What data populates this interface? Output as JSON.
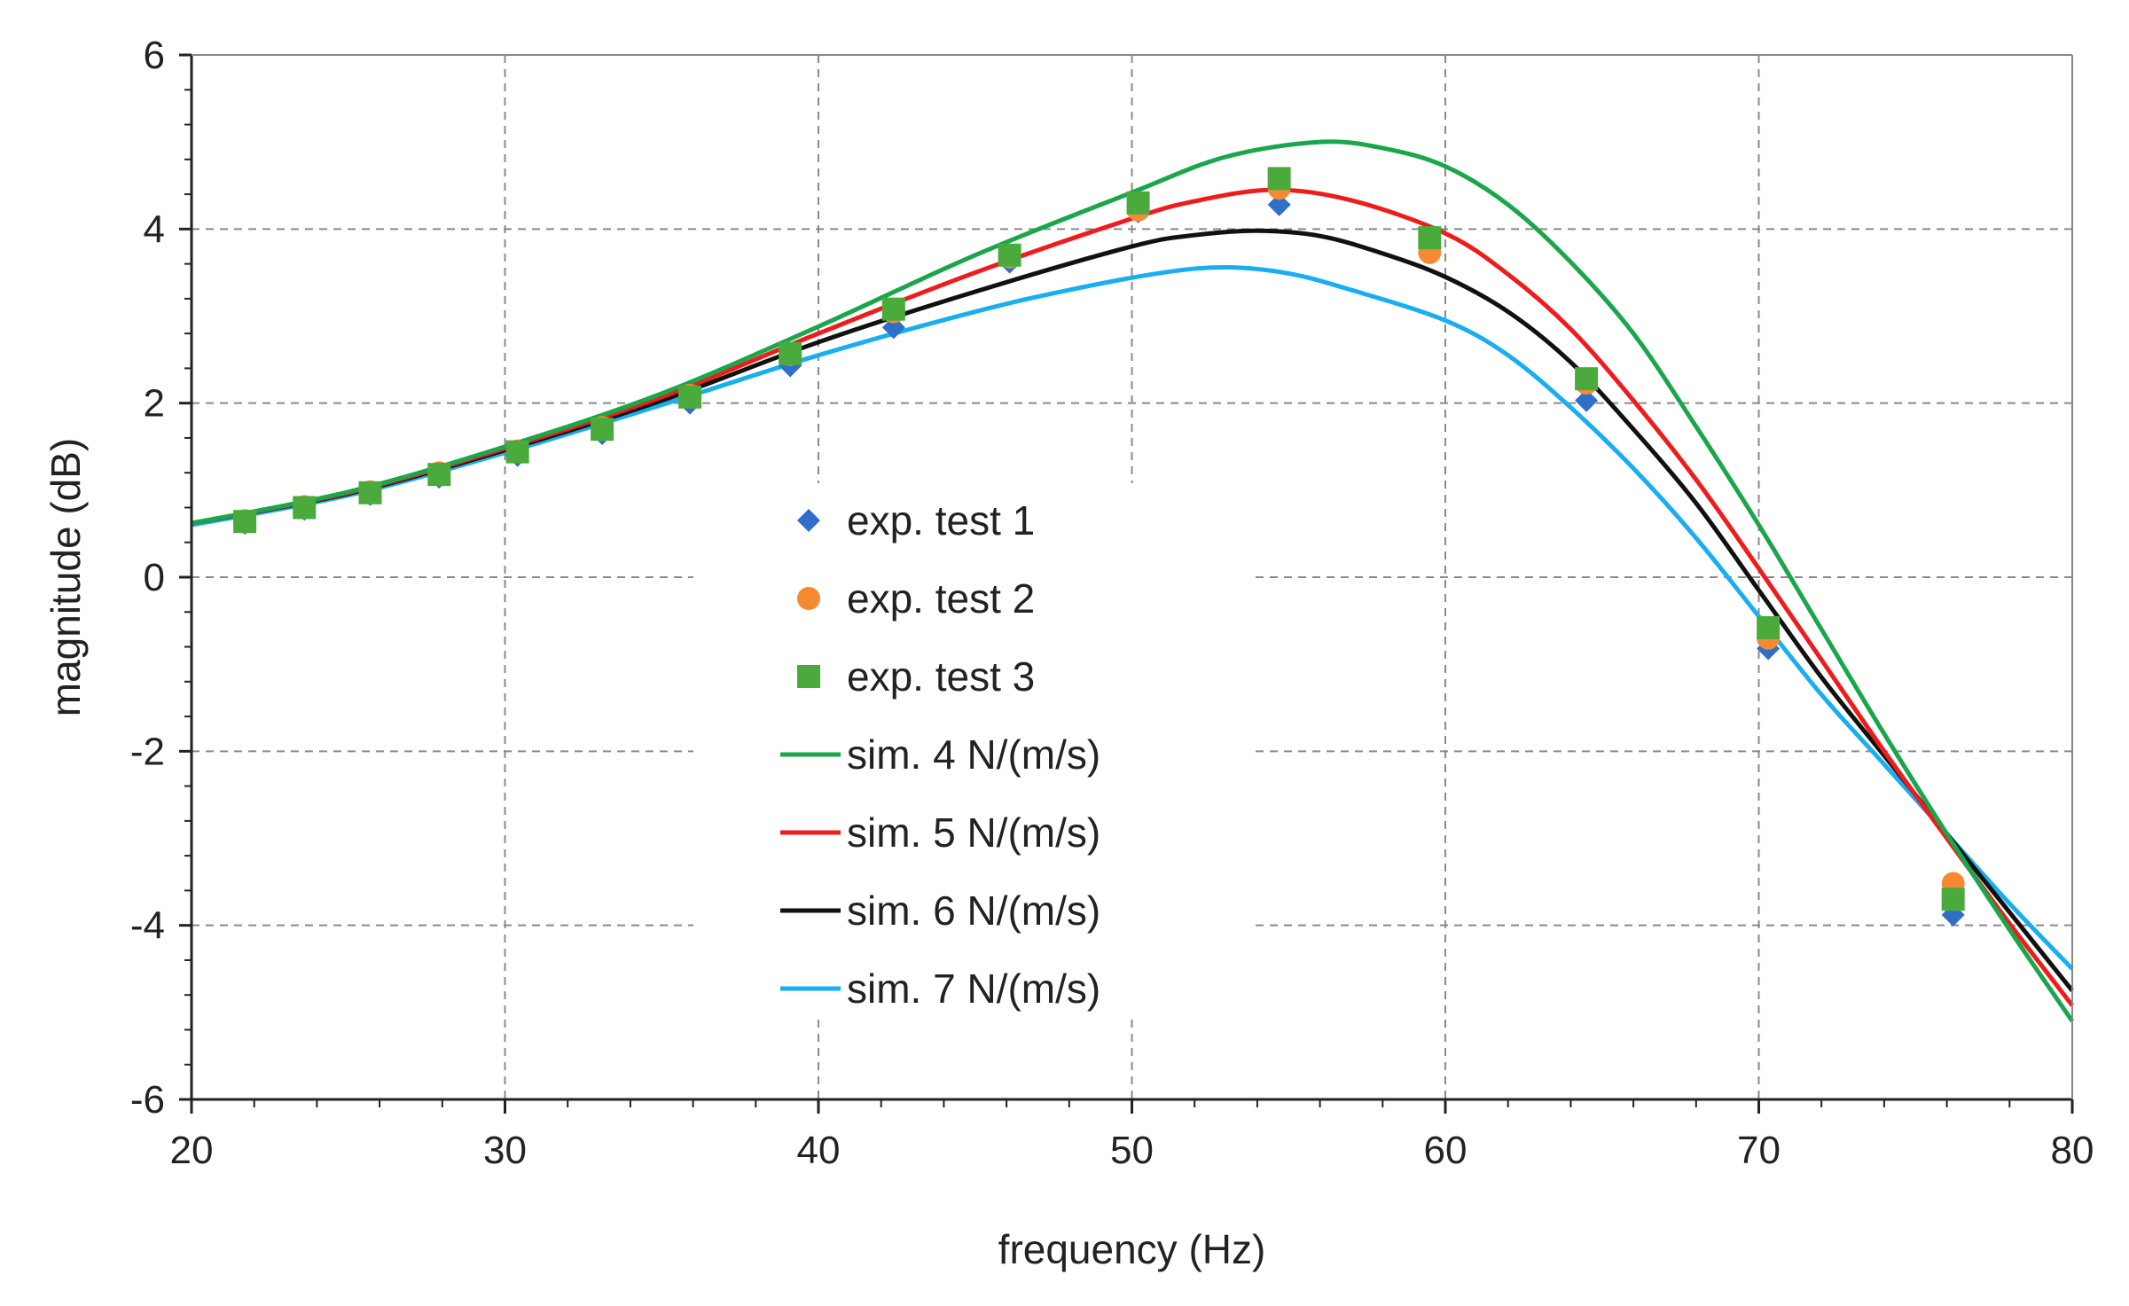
{
  "chart_data": {
    "type": "scatter",
    "title": "",
    "xlabel": "frequency (Hz)",
    "ylabel": "magnitude (dB)",
    "xlim": [
      20,
      80
    ],
    "ylim": [
      -6,
      6
    ],
    "x_ticks": [
      20,
      30,
      40,
      50,
      60,
      70,
      80
    ],
    "y_ticks": [
      -6,
      -4,
      -2,
      0,
      2,
      4,
      6
    ],
    "x_tick_labels": [
      "20",
      "30",
      "40",
      "50",
      "60",
      "70",
      "80"
    ],
    "y_tick_labels": [
      "-6",
      "-4",
      "-2",
      "0",
      "2",
      "4",
      "6"
    ],
    "grid": true,
    "legend_position": "center-left",
    "scatter_series": [
      {
        "name": "exp. test 1",
        "marker": "diamond",
        "color": "#2f6fc9",
        "x": [
          21.7,
          23.6,
          25.7,
          27.9,
          30.4,
          33.1,
          35.9,
          39.1,
          42.4,
          46.1,
          50.2,
          54.7,
          59.5,
          64.5,
          70.3,
          76.2
        ],
        "y": [
          0.62,
          0.78,
          0.95,
          1.15,
          1.4,
          1.65,
          2.0,
          2.43,
          2.87,
          3.62,
          4.2,
          4.28,
          3.8,
          2.03,
          -0.82,
          -3.88
        ]
      },
      {
        "name": "exp. test 2",
        "marker": "circle",
        "color": "#f58a33",
        "x": [
          21.7,
          23.6,
          25.7,
          27.9,
          30.4,
          33.1,
          35.9,
          39.1,
          42.4,
          46.1,
          50.2,
          54.7,
          59.5,
          64.5,
          70.3,
          76.2
        ],
        "y": [
          0.65,
          0.81,
          0.98,
          1.2,
          1.45,
          1.72,
          2.09,
          2.56,
          3.05,
          3.68,
          4.22,
          4.47,
          3.73,
          2.23,
          -0.7,
          -3.52
        ]
      },
      {
        "name": "exp. test 3",
        "marker": "square",
        "color": "#4aab3c",
        "x": [
          21.7,
          23.6,
          25.7,
          27.9,
          30.4,
          33.1,
          35.9,
          39.1,
          42.4,
          46.1,
          50.2,
          54.7,
          59.5,
          64.5,
          70.3,
          76.2
        ],
        "y": [
          0.64,
          0.8,
          0.97,
          1.18,
          1.44,
          1.7,
          2.07,
          2.57,
          3.08,
          3.7,
          4.3,
          4.58,
          3.9,
          2.28,
          -0.58,
          -3.7
        ]
      }
    ],
    "line_series": [
      {
        "name": "sim. 4 N/(m/s)",
        "color": "#1aa64a",
        "x": [
          20,
          25,
          30,
          35,
          40,
          45,
          50,
          53,
          56,
          58,
          60,
          62,
          64,
          66,
          68,
          70,
          72,
          74,
          76,
          78,
          80
        ],
        "y": [
          0.62,
          0.98,
          1.5,
          2.11,
          2.88,
          3.7,
          4.42,
          4.83,
          5.0,
          4.93,
          4.72,
          4.28,
          3.62,
          2.8,
          1.73,
          0.6,
          -0.6,
          -1.8,
          -2.95,
          -4.05,
          -5.1
        ]
      },
      {
        "name": "sim. 5 N/(m/s)",
        "color": "#ee1c1c",
        "x": [
          20,
          25,
          30,
          35,
          40,
          45,
          50,
          52,
          54.5,
          57,
          60,
          62,
          64,
          66,
          68,
          70,
          72,
          74,
          76,
          78,
          80
        ],
        "y": [
          0.62,
          0.97,
          1.48,
          2.07,
          2.8,
          3.5,
          4.12,
          4.32,
          4.45,
          4.33,
          3.95,
          3.48,
          2.85,
          2.03,
          1.12,
          0.1,
          -0.95,
          -2.0,
          -3.0,
          -3.98,
          -4.92
        ]
      },
      {
        "name": "sim. 6 N/(m/s)",
        "color": "#111111",
        "x": [
          20,
          25,
          30,
          35,
          40,
          45,
          50,
          52,
          54,
          56,
          58,
          60,
          62,
          64,
          66,
          68,
          70,
          72,
          74,
          76,
          78,
          80
        ],
        "y": [
          0.62,
          0.96,
          1.46,
          2.03,
          2.7,
          3.28,
          3.8,
          3.93,
          3.98,
          3.92,
          3.72,
          3.45,
          3.05,
          2.47,
          1.7,
          0.85,
          -0.15,
          -1.15,
          -2.05,
          -2.95,
          -3.85,
          -4.75
        ]
      },
      {
        "name": "sim. 7 N/(m/s)",
        "color": "#19aef0",
        "x": [
          20,
          25,
          30,
          35,
          40,
          45,
          48,
          51,
          53,
          55,
          57,
          60,
          62,
          64,
          66,
          68,
          70,
          72,
          74,
          76,
          78,
          80
        ],
        "y": [
          0.6,
          0.94,
          1.43,
          1.98,
          2.55,
          3.05,
          3.3,
          3.5,
          3.56,
          3.49,
          3.3,
          2.95,
          2.55,
          1.95,
          1.25,
          0.45,
          -0.45,
          -1.35,
          -2.15,
          -2.95,
          -3.75,
          -4.5
        ]
      }
    ]
  }
}
